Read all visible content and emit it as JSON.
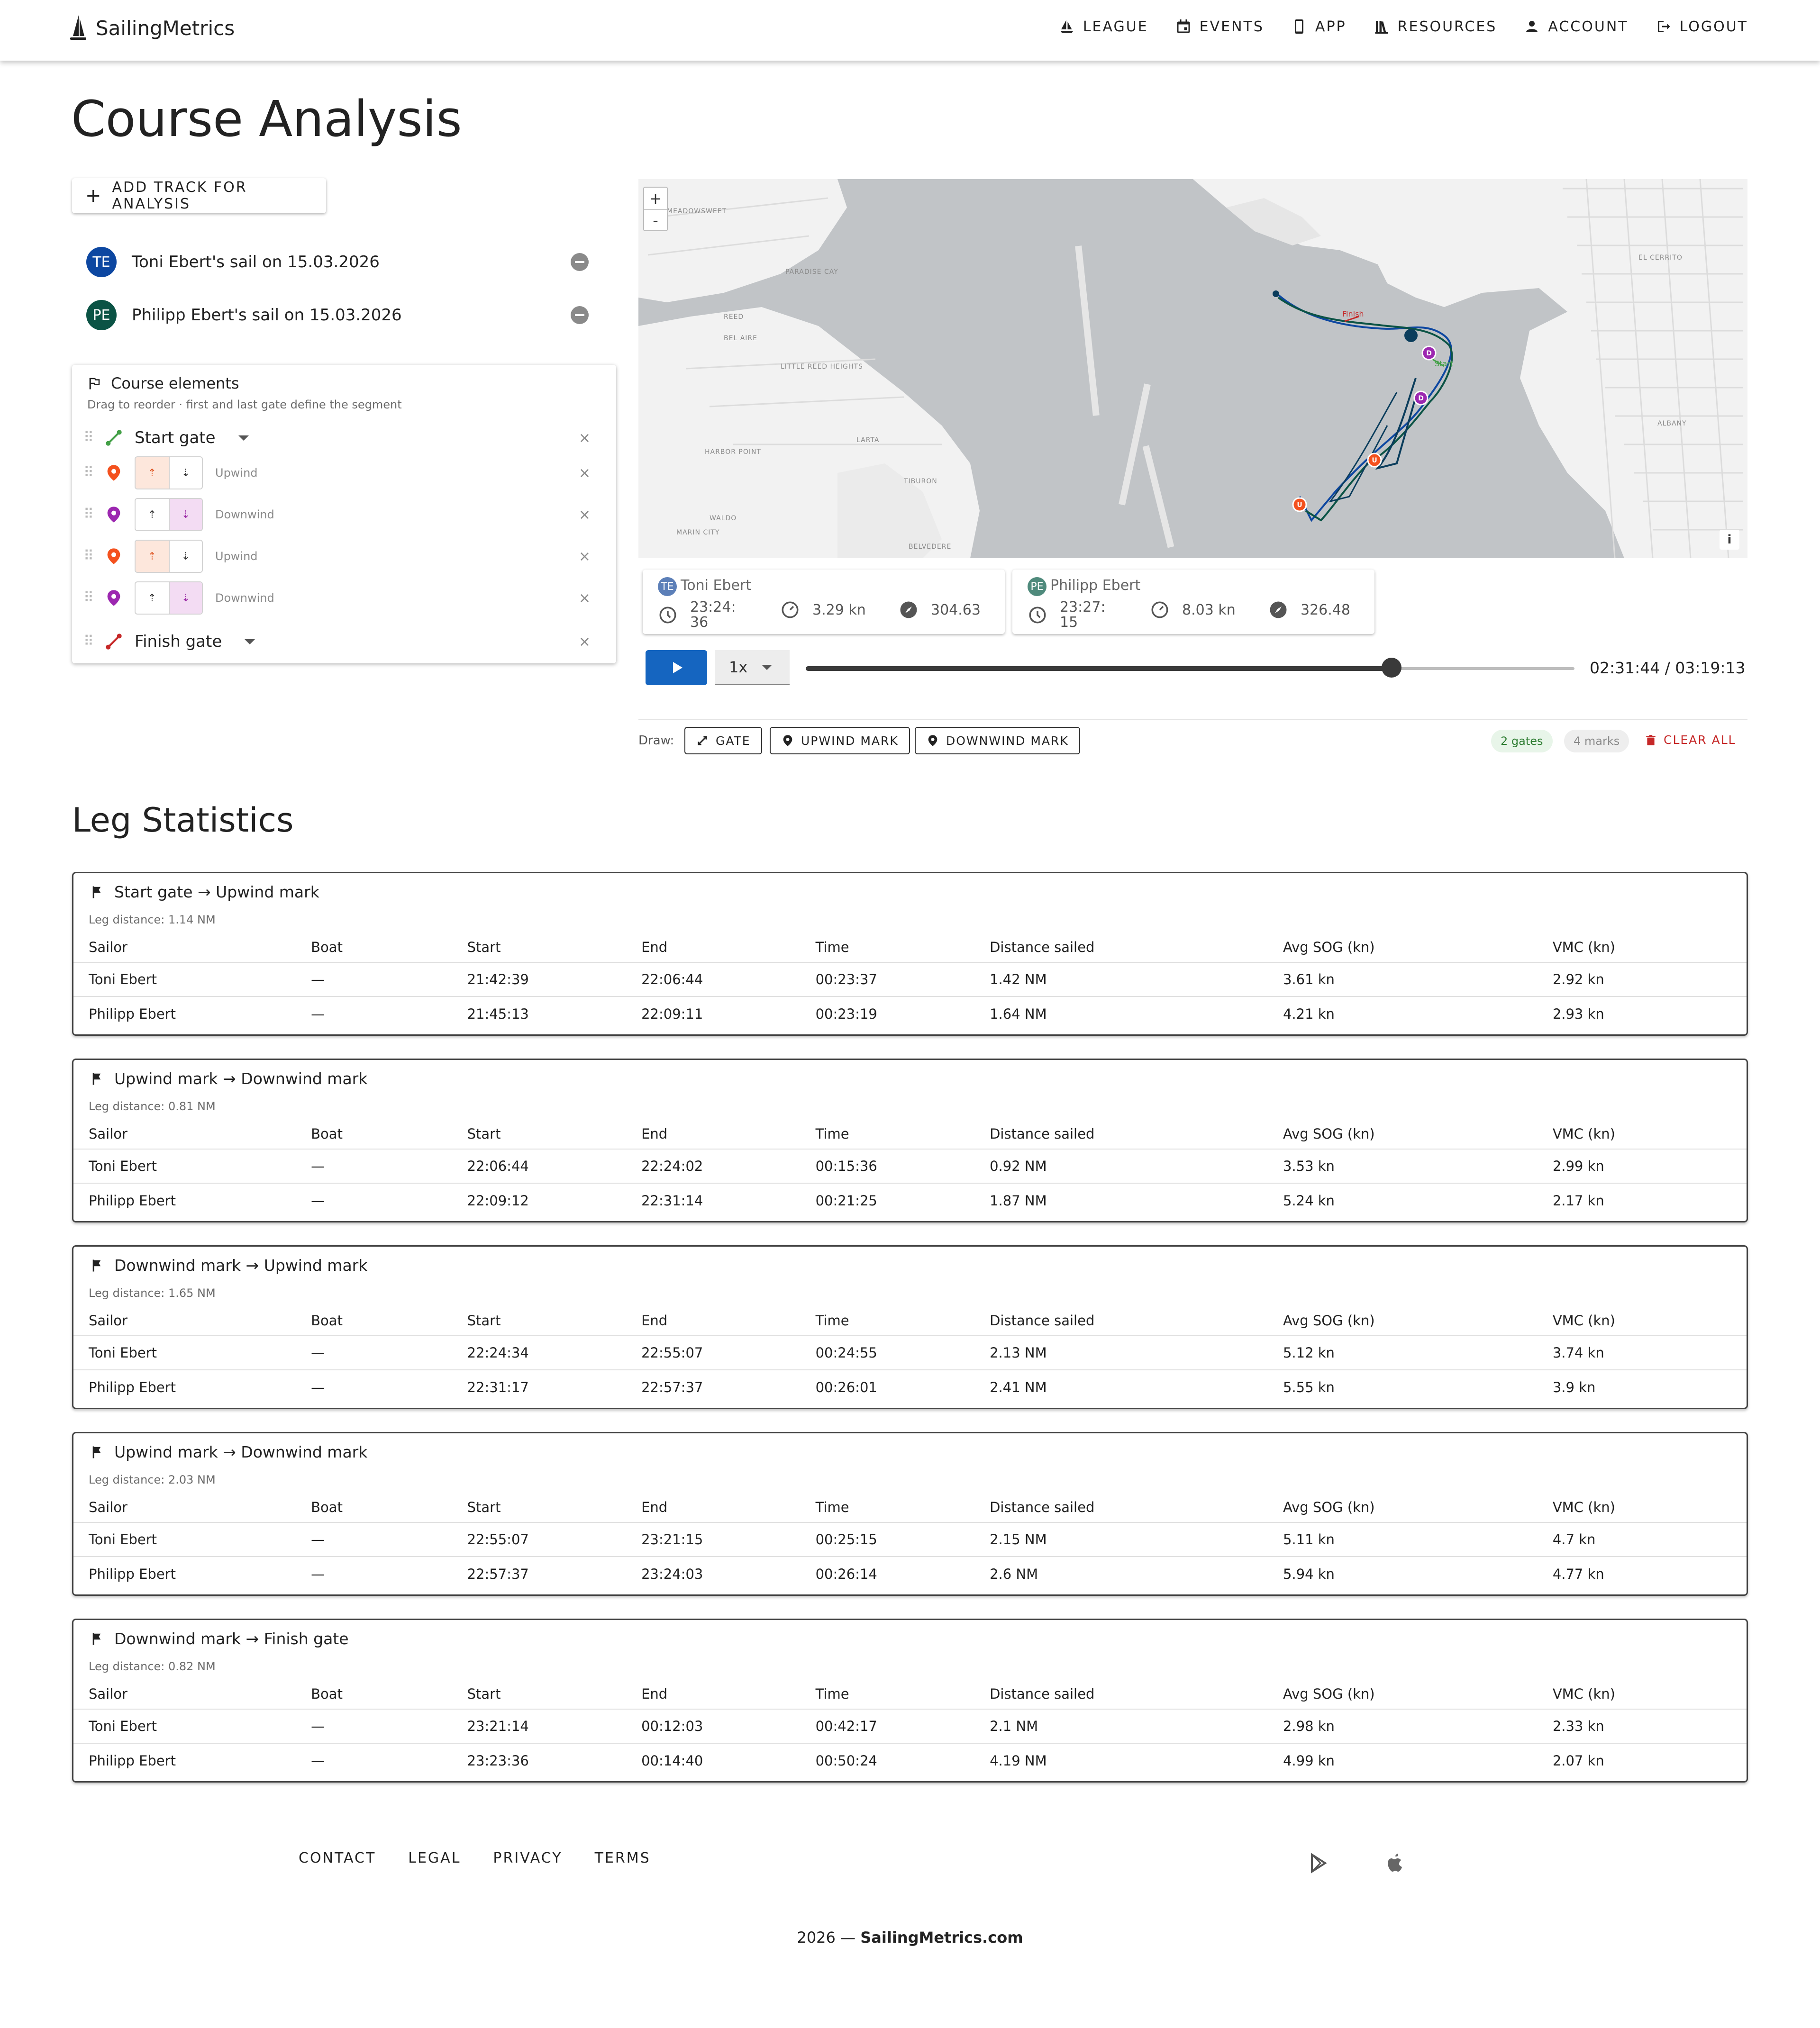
{
  "app": {
    "brand": "SailingMetrics",
    "nav": [
      {
        "label": "LEAGUE",
        "icon": "sailboat-icon"
      },
      {
        "label": "EVENTS",
        "icon": "calendar-icon"
      },
      {
        "label": "APP",
        "icon": "phone-icon"
      },
      {
        "label": "RESOURCES",
        "icon": "library-icon"
      },
      {
        "label": "ACCOUNT",
        "icon": "person-icon"
      },
      {
        "label": "LOGOUT",
        "icon": "logout-icon"
      }
    ]
  },
  "page": {
    "title": "Course Analysis",
    "add_track_label": "ADD TRACK FOR ANALYSIS"
  },
  "tracks": [
    {
      "initials": "TE",
      "label": "Toni Ebert's sail on 15.03.2026",
      "color": "#0d47a1"
    },
    {
      "initials": "PE",
      "label": "Philipp Ebert's sail on 15.03.2026",
      "color": "#0b5345"
    }
  ],
  "course": {
    "title": "Course elements",
    "subtitle": "Drag to reorder · first and last gate define the segment",
    "elements": [
      {
        "type": "gate",
        "label": "Start gate",
        "icon": "start-gate-icon",
        "color": "#43a047"
      },
      {
        "type": "mark",
        "kind": "Upwind",
        "icon": "map-pin-icon",
        "color": "#f4511e",
        "up": "⇡",
        "down": "⇣"
      },
      {
        "type": "mark",
        "kind": "Downwind",
        "icon": "map-pin-icon",
        "color": "#9c27b0",
        "up": "⇡",
        "down": "⇣"
      },
      {
        "type": "mark",
        "kind": "Upwind",
        "icon": "map-pin-icon",
        "color": "#f4511e",
        "up": "⇡",
        "down": "⇣"
      },
      {
        "type": "mark",
        "kind": "Downwind",
        "icon": "map-pin-icon",
        "color": "#9c27b0",
        "up": "⇡",
        "down": "⇣"
      },
      {
        "type": "gate",
        "label": "Finish gate",
        "icon": "finish-gate-icon",
        "color": "#c62828"
      }
    ]
  },
  "map": {
    "zoom_in": "+",
    "zoom_out": "-",
    "info": "i",
    "finish_label": "Finish",
    "start_label": "Start",
    "mark_letters": {
      "upwind": "U",
      "downwind": "D"
    },
    "place_labels": [
      "MEADOWSWEET",
      "PARADISE CAY",
      "REED",
      "BEL AIRE",
      "LITTLE REED HEIGHTS",
      "HARBOR POINT",
      "LARTA",
      "TIBURON",
      "WALDO",
      "MARIN CITY",
      "BELVEDERE",
      "EL CERRITO",
      "ALBANY"
    ]
  },
  "boats": [
    {
      "name": "Toni Ebert",
      "initials": "TE",
      "time": "23:24:36",
      "speed": "3.29 kn",
      "heading": "304.63"
    },
    {
      "name": "Philipp Ebert",
      "initials": "PE",
      "time": "23:27:15",
      "speed": "8.03 kn",
      "heading": "326.48"
    }
  ],
  "playback": {
    "speed": "1x",
    "current": "02:31:44",
    "total": "03:19:13",
    "time_label": "02:31:44 / 03:19:13",
    "progress": 0.762
  },
  "draw": {
    "label": "Draw:",
    "buttons": [
      "GATE",
      "UPWIND MARK",
      "DOWNWIND MARK"
    ],
    "gates_chip": "2 gates",
    "marks_chip": "4 marks",
    "clear_label": "CLEAR ALL"
  },
  "legs_title": "Leg Statistics",
  "columns": [
    "Sailor",
    "Boat",
    "Start",
    "End",
    "Time",
    "Distance sailed",
    "Avg SOG (kn)",
    "VMC (kn)"
  ],
  "legs": [
    {
      "title": "Start gate → Upwind mark",
      "distance": "Leg distance: 1.14 NM",
      "rows": [
        [
          "Toni Ebert",
          "—",
          "21:42:39",
          "22:06:44",
          "00:23:37",
          "1.42 NM",
          "3.61 kn",
          "2.92 kn"
        ],
        [
          "Philipp Ebert",
          "—",
          "21:45:13",
          "22:09:11",
          "00:23:19",
          "1.64 NM",
          "4.21 kn",
          "2.93 kn"
        ]
      ]
    },
    {
      "title": "Upwind mark → Downwind mark",
      "distance": "Leg distance: 0.81 NM",
      "rows": [
        [
          "Toni Ebert",
          "—",
          "22:06:44",
          "22:24:02",
          "00:15:36",
          "0.92 NM",
          "3.53 kn",
          "2.99 kn"
        ],
        [
          "Philipp Ebert",
          "—",
          "22:09:12",
          "22:31:14",
          "00:21:25",
          "1.87 NM",
          "5.24 kn",
          "2.17 kn"
        ]
      ]
    },
    {
      "title": "Downwind mark → Upwind mark",
      "distance": "Leg distance: 1.65 NM",
      "rows": [
        [
          "Toni Ebert",
          "—",
          "22:24:34",
          "22:55:07",
          "00:24:55",
          "2.13 NM",
          "5.12 kn",
          "3.74 kn"
        ],
        [
          "Philipp Ebert",
          "—",
          "22:31:17",
          "22:57:37",
          "00:26:01",
          "2.41 NM",
          "5.55 kn",
          "3.9 kn"
        ]
      ]
    },
    {
      "title": "Upwind mark → Downwind mark",
      "distance": "Leg distance: 2.03 NM",
      "rows": [
        [
          "Toni Ebert",
          "—",
          "22:55:07",
          "23:21:15",
          "00:25:15",
          "2.15 NM",
          "5.11 kn",
          "4.7 kn"
        ],
        [
          "Philipp Ebert",
          "—",
          "22:57:37",
          "23:24:03",
          "00:26:14",
          "2.6 NM",
          "5.94 kn",
          "4.77 kn"
        ]
      ]
    },
    {
      "title": "Downwind mark → Finish gate",
      "distance": "Leg distance: 0.82 NM",
      "rows": [
        [
          "Toni Ebert",
          "—",
          "23:21:14",
          "00:12:03",
          "00:42:17",
          "2.1 NM",
          "2.98 kn",
          "2.33 kn"
        ],
        [
          "Philipp Ebert",
          "—",
          "23:23:36",
          "00:14:40",
          "00:50:24",
          "4.19 NM",
          "4.99 kn",
          "2.07 kn"
        ]
      ]
    }
  ],
  "footer": {
    "links": [
      "CONTACT",
      "LEGAL",
      "PRIVACY",
      "TERMS"
    ],
    "store_icons": [
      "google-play-icon",
      "apple-icon"
    ],
    "copyright_prefix": "2026 — ",
    "copyright_site": "SailingMetrics.com"
  },
  "colors": {
    "accent": "#1565c0",
    "track_dark": "#0b3d5c",
    "upwind": "#f4511e",
    "downwind": "#9c27b0",
    "danger": "#c62828",
    "start": "#43a047"
  }
}
